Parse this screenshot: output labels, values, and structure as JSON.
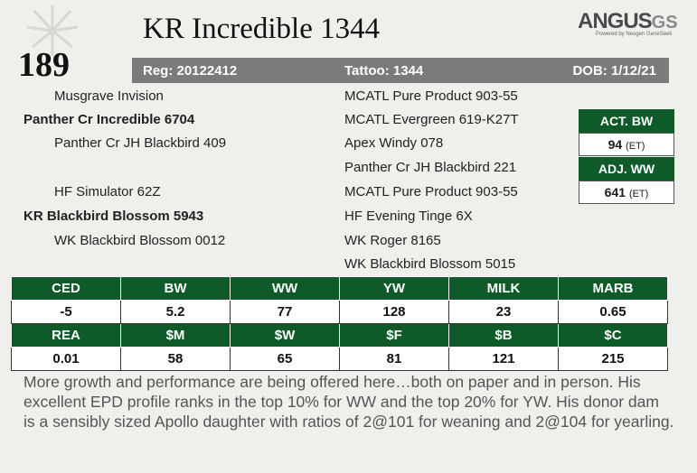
{
  "lot_number": "189",
  "bull_name": "KR Incredible 1344",
  "logo": {
    "main": "ANGUS",
    "suffix": "GS",
    "tagline": "Powered by Neogen GeneSeek"
  },
  "info": {
    "reg": "Reg: 20122412",
    "tattoo": "Tattoo: 1344",
    "dob": "DOB: 1/12/21"
  },
  "pedigree": {
    "sire_sire_sire": "Musgrave Invision",
    "sire": "Panther Cr Incredible 6704",
    "sire_dam": "Panther Cr JH Blackbird 409",
    "dam_sire": "HF Simulator 62Z",
    "dam": "KR Blackbird Blossom 5943",
    "dam_dam": "WK Blackbird Blossom 0012",
    "right": [
      "MCATL Pure Product 903-55",
      "MCATL Evergreen 619-K27T",
      "Apex Windy 078",
      "Panther Cr JH Blackbird 221",
      "MCATL Pure Product 903-55",
      "HF Evening Tinge 6X",
      "WK Roger 8165",
      "WK Blackbird Blossom 5015"
    ]
  },
  "performance": {
    "act_bw_label": "ACT. BW",
    "act_bw_value": "94",
    "act_bw_note": "(ET)",
    "adj_ww_label": "ADJ. WW",
    "adj_ww_value": "641",
    "adj_ww_note": "(ET)"
  },
  "epd": {
    "row1_headers": [
      "CED",
      "BW",
      "WW",
      "YW",
      "MILK",
      "MARB"
    ],
    "row1_values": [
      "-5",
      "5.2",
      "77",
      "128",
      "23",
      "0.65"
    ],
    "row2_headers": [
      "REA",
      "$M",
      "$W",
      "$F",
      "$B",
      "$C"
    ],
    "row2_values": [
      "0.01",
      "58",
      "65",
      "81",
      "121",
      "215"
    ]
  },
  "description": "More growth and performance are being offered here…both on paper and in person. His excellent EPD profile ranks in the top 10% for WW and the top 20% for YW. His donor dam is a sensibly sized Apollo daughter with ratios of 2@101 for weaning and 2@104 for yearling."
}
